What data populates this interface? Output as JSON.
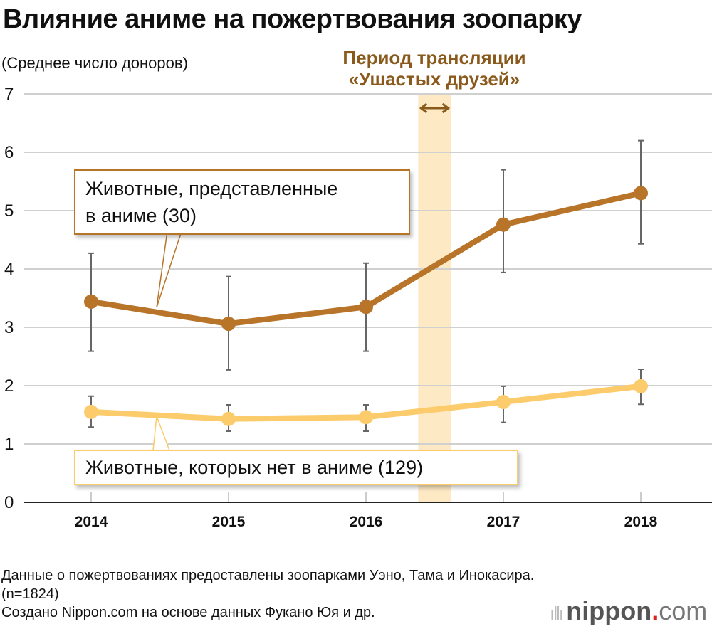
{
  "chart_data": {
    "type": "line",
    "title": "Влияние аниме на пожертвования зоопарку",
    "ylabel": "(Среднее число доноров)",
    "xlabel": "",
    "categories": [
      "2014",
      "2015",
      "2016",
      "2017",
      "2018"
    ],
    "ylim": [
      0,
      7
    ],
    "yticks": [
      "0",
      "1",
      "2",
      "3",
      "4",
      "5",
      "6",
      "7"
    ],
    "grid": true,
    "series": [
      {
        "name": "Животные, представленные в аниме (30)",
        "name_line1": "Животные, представленные",
        "name_line2": "в аниме (30)",
        "color": "#b87429",
        "values": [
          3.44,
          3.06,
          3.35,
          4.76,
          5.3
        ],
        "err_high": [
          4.27,
          3.87,
          4.1,
          5.7,
          6.2
        ],
        "err_low": [
          2.59,
          2.27,
          2.59,
          3.94,
          4.43
        ]
      },
      {
        "name": "Животные, которых нет в аниме (129)",
        "color": "#fccb6b",
        "values": [
          1.55,
          1.43,
          1.46,
          1.72,
          1.99
        ],
        "err_high": [
          1.82,
          1.67,
          1.67,
          1.99,
          2.28
        ],
        "err_low": [
          1.29,
          1.22,
          1.22,
          1.37,
          1.68
        ]
      }
    ],
    "annotation": {
      "line1": "Период трансляции",
      "line2": "«Ушастых друзей»",
      "from": 2016.38,
      "to": 2016.62,
      "band_color": "#fde9c4",
      "label_color": "#8a5a1c"
    }
  },
  "notes": [
    "Данные о пожертвованиях предоставлены зоопарками Уэно, Тама и Инокасира.",
    "(n=1824)",
    "Создано Nippon.com на основе данных Фукано Юя и др."
  ],
  "logo": {
    "main": "nippon",
    "dot": ".",
    "com": "com"
  }
}
